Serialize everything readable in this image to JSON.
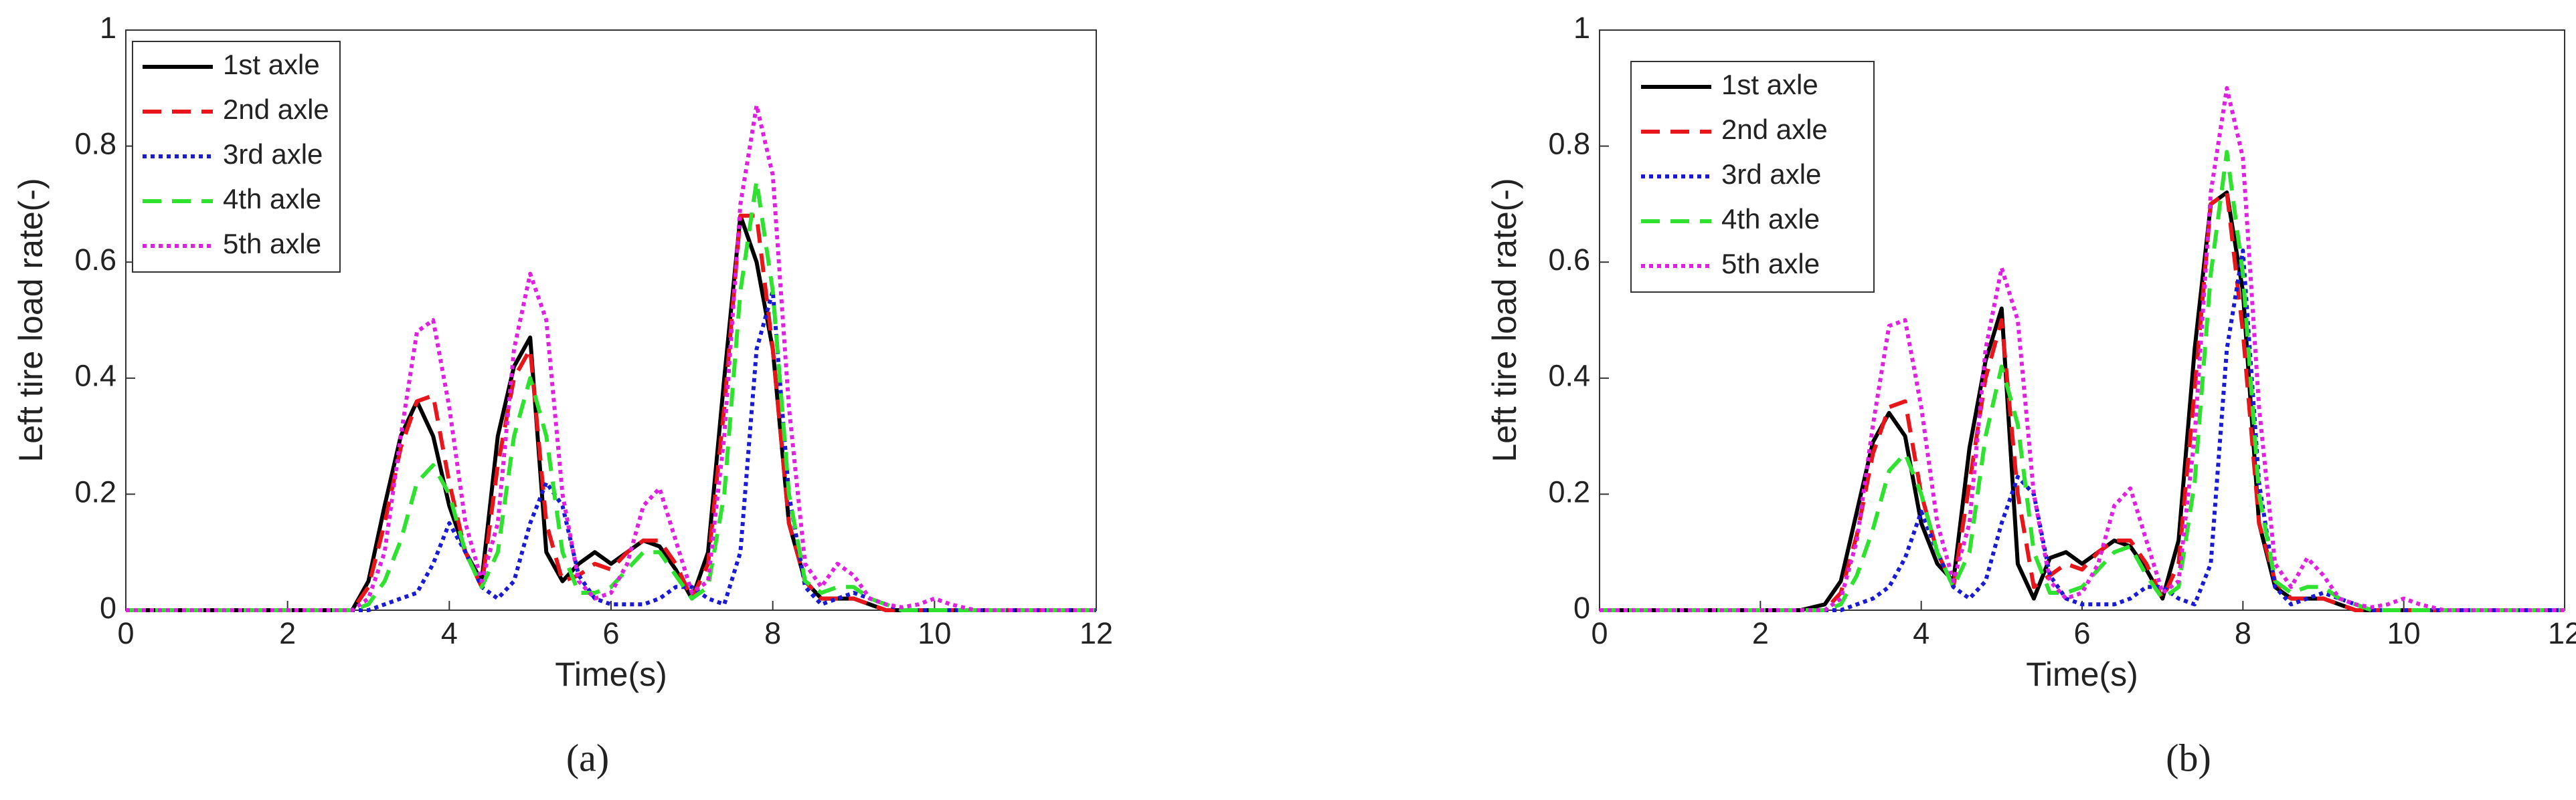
{
  "chart_data": [
    {
      "type": "line",
      "xlabel": "Time(s)",
      "ylabel": "Left tire load rate(-)",
      "caption": "(a)",
      "xlim": [
        0,
        12
      ],
      "xticks": [
        0,
        2,
        4,
        6,
        8,
        10,
        12
      ],
      "ylim": [
        0,
        1
      ],
      "yticks": [
        0,
        0.2,
        0.4,
        0.6,
        0.8,
        1
      ],
      "x": [
        0,
        1,
        2,
        2.5,
        2.8,
        3.0,
        3.2,
        3.4,
        3.6,
        3.8,
        4.0,
        4.2,
        4.4,
        4.6,
        4.8,
        5.0,
        5.2,
        5.4,
        5.6,
        5.8,
        6.0,
        6.2,
        6.4,
        6.6,
        6.8,
        7.0,
        7.2,
        7.4,
        7.6,
        7.8,
        8.0,
        8.2,
        8.4,
        8.6,
        8.8,
        9.0,
        9.2,
        9.4,
        9.6,
        9.8,
        10.0,
        10.2,
        10.5,
        11,
        12
      ],
      "series": [
        {
          "name": "1st axle",
          "color": "#000000",
          "dash": "solid",
          "values": [
            0,
            0,
            0,
            0,
            0,
            0.05,
            0.18,
            0.3,
            0.36,
            0.3,
            0.18,
            0.1,
            0.05,
            0.3,
            0.42,
            0.47,
            0.1,
            0.05,
            0.08,
            0.1,
            0.08,
            0.1,
            0.12,
            0.11,
            0.07,
            0.02,
            0.1,
            0.4,
            0.68,
            0.6,
            0.45,
            0.15,
            0.05,
            0.02,
            0.02,
            0.02,
            0.01,
            0,
            0,
            0,
            0,
            0,
            0,
            0,
            0
          ]
        },
        {
          "name": "2nd axle",
          "color": "#e8161b",
          "dash": "dashed",
          "values": [
            0,
            0,
            0,
            0,
            0,
            0.04,
            0.15,
            0.28,
            0.36,
            0.37,
            0.22,
            0.1,
            0.04,
            0.25,
            0.4,
            0.45,
            0.15,
            0.05,
            0.06,
            0.08,
            0.07,
            0.1,
            0.12,
            0.12,
            0.08,
            0.02,
            0.08,
            0.35,
            0.68,
            0.68,
            0.45,
            0.15,
            0.05,
            0.02,
            0.02,
            0.02,
            0.01,
            0,
            0,
            0,
            0,
            0,
            0,
            0,
            0
          ]
        },
        {
          "name": "3rd axle",
          "color": "#1a1ad6",
          "dash": "dotted",
          "values": [
            0,
            0,
            0,
            0,
            0,
            0,
            0.01,
            0.02,
            0.03,
            0.08,
            0.15,
            0.1,
            0.04,
            0.02,
            0.05,
            0.15,
            0.22,
            0.18,
            0.06,
            0.02,
            0.01,
            0.01,
            0.01,
            0.02,
            0.04,
            0.04,
            0.02,
            0.01,
            0.1,
            0.45,
            0.55,
            0.2,
            0.04,
            0.01,
            0.02,
            0.03,
            0.02,
            0.01,
            0,
            0,
            0,
            0,
            0,
            0,
            0
          ]
        },
        {
          "name": "4th axle",
          "color": "#2fe22f",
          "dash": "dashed",
          "values": [
            0,
            0,
            0,
            0,
            0,
            0.01,
            0.05,
            0.12,
            0.22,
            0.25,
            0.2,
            0.1,
            0.04,
            0.1,
            0.3,
            0.4,
            0.3,
            0.1,
            0.03,
            0.03,
            0.04,
            0.07,
            0.1,
            0.1,
            0.06,
            0.02,
            0.04,
            0.2,
            0.55,
            0.74,
            0.55,
            0.2,
            0.05,
            0.03,
            0.04,
            0.04,
            0.02,
            0.01,
            0,
            0,
            0,
            0,
            0,
            0,
            0
          ]
        },
        {
          "name": "5th axle",
          "color": "#e020e0",
          "dash": "dotted",
          "values": [
            0,
            0,
            0,
            0,
            0,
            0.02,
            0.1,
            0.3,
            0.48,
            0.5,
            0.35,
            0.15,
            0.05,
            0.15,
            0.45,
            0.58,
            0.5,
            0.2,
            0.05,
            0.02,
            0.03,
            0.08,
            0.18,
            0.21,
            0.12,
            0.03,
            0.05,
            0.3,
            0.7,
            0.87,
            0.75,
            0.35,
            0.08,
            0.04,
            0.08,
            0.06,
            0.02,
            0.01,
            0.005,
            0.01,
            0.02,
            0.01,
            0,
            0,
            0
          ]
        }
      ]
    },
    {
      "type": "line",
      "xlabel": "Time(s)",
      "ylabel": "Left tire load rate(-)",
      "caption": "(b)",
      "xlim": [
        0,
        12
      ],
      "xticks": [
        0,
        2,
        4,
        6,
        8,
        10,
        12
      ],
      "ylim": [
        0,
        1
      ],
      "yticks": [
        0,
        0.2,
        0.4,
        0.6,
        0.8,
        1
      ],
      "x": [
        0,
        1,
        2,
        2.5,
        2.8,
        3.0,
        3.2,
        3.4,
        3.6,
        3.8,
        4.0,
        4.2,
        4.4,
        4.6,
        4.8,
        5.0,
        5.2,
        5.4,
        5.6,
        5.8,
        6.0,
        6.2,
        6.4,
        6.6,
        6.8,
        7.0,
        7.2,
        7.4,
        7.6,
        7.8,
        8.0,
        8.2,
        8.4,
        8.6,
        8.8,
        9.0,
        9.2,
        9.4,
        9.6,
        9.8,
        10.0,
        10.2,
        10.5,
        11,
        12
      ],
      "series": [
        {
          "name": "1st axle",
          "color": "#000000",
          "dash": "solid",
          "values": [
            0,
            0,
            0,
            0,
            0.01,
            0.05,
            0.17,
            0.29,
            0.34,
            0.3,
            0.15,
            0.08,
            0.05,
            0.28,
            0.43,
            0.52,
            0.08,
            0.02,
            0.09,
            0.1,
            0.08,
            0.1,
            0.12,
            0.11,
            0.07,
            0.02,
            0.12,
            0.45,
            0.7,
            0.72,
            0.55,
            0.15,
            0.04,
            0.02,
            0.02,
            0.02,
            0.01,
            0,
            0,
            0,
            0,
            0,
            0,
            0,
            0
          ]
        },
        {
          "name": "2nd axle",
          "color": "#e8161b",
          "dash": "dashed",
          "values": [
            0,
            0,
            0,
            0,
            0,
            0.03,
            0.13,
            0.27,
            0.35,
            0.36,
            0.2,
            0.1,
            0.04,
            0.22,
            0.4,
            0.5,
            0.2,
            0.04,
            0.06,
            0.08,
            0.07,
            0.1,
            0.12,
            0.12,
            0.08,
            0.02,
            0.08,
            0.38,
            0.7,
            0.72,
            0.48,
            0.15,
            0.05,
            0.02,
            0.02,
            0.02,
            0.01,
            0,
            0,
            0,
            0,
            0,
            0,
            0,
            0
          ]
        },
        {
          "name": "3rd axle",
          "color": "#1a1ad6",
          "dash": "dotted",
          "values": [
            0,
            0,
            0,
            0,
            0,
            0,
            0.01,
            0.02,
            0.04,
            0.09,
            0.17,
            0.1,
            0.04,
            0.02,
            0.05,
            0.15,
            0.23,
            0.2,
            0.06,
            0.02,
            0.01,
            0.01,
            0.01,
            0.02,
            0.04,
            0.04,
            0.02,
            0.01,
            0.08,
            0.45,
            0.62,
            0.22,
            0.04,
            0.01,
            0.02,
            0.03,
            0.02,
            0.01,
            0,
            0,
            0,
            0,
            0,
            0,
            0
          ]
        },
        {
          "name": "4th axle",
          "color": "#2fe22f",
          "dash": "dashed",
          "values": [
            0,
            0,
            0,
            0,
            0,
            0.01,
            0.06,
            0.14,
            0.24,
            0.27,
            0.2,
            0.1,
            0.04,
            0.1,
            0.3,
            0.42,
            0.32,
            0.1,
            0.03,
            0.03,
            0.04,
            0.07,
            0.1,
            0.11,
            0.06,
            0.02,
            0.04,
            0.22,
            0.58,
            0.79,
            0.58,
            0.2,
            0.05,
            0.03,
            0.04,
            0.04,
            0.02,
            0.01,
            0,
            0,
            0,
            0,
            0,
            0,
            0
          ]
        },
        {
          "name": "5th axle",
          "color": "#e020e0",
          "dash": "dotted",
          "values": [
            0,
            0,
            0,
            0,
            0,
            0.02,
            0.12,
            0.32,
            0.49,
            0.5,
            0.35,
            0.15,
            0.05,
            0.15,
            0.45,
            0.59,
            0.5,
            0.2,
            0.05,
            0.02,
            0.03,
            0.08,
            0.18,
            0.21,
            0.12,
            0.03,
            0.05,
            0.3,
            0.72,
            0.9,
            0.78,
            0.35,
            0.08,
            0.04,
            0.09,
            0.06,
            0.02,
            0.01,
            0.005,
            0.01,
            0.02,
            0.01,
            0,
            0,
            0
          ]
        }
      ]
    }
  ]
}
